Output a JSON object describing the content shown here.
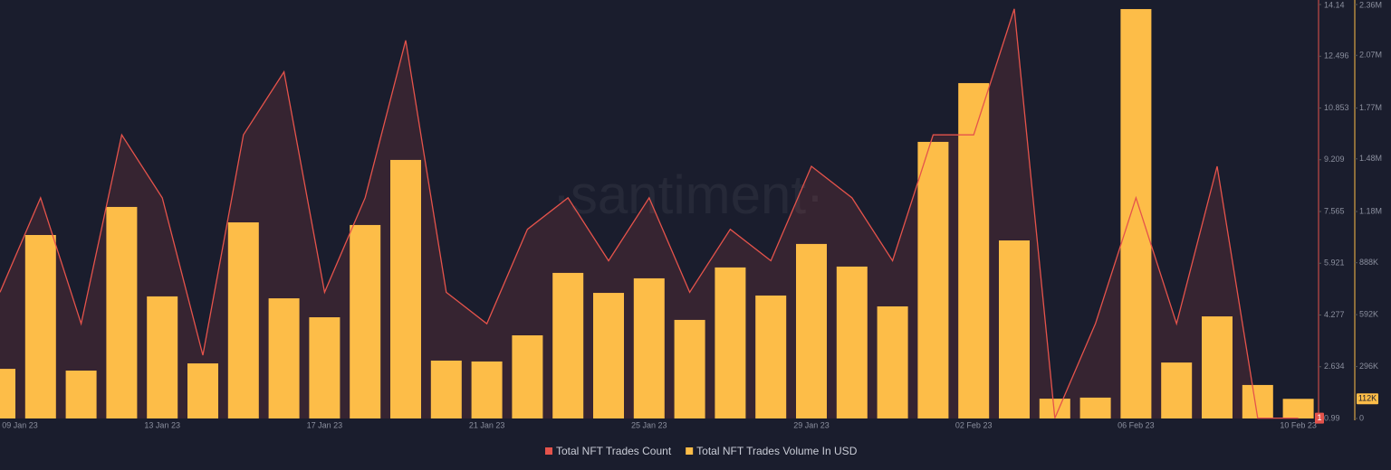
{
  "chart_data": {
    "type": "combo",
    "watermark": "·santiment·",
    "categories": [
      "09 Jan 23",
      null,
      null,
      null,
      "13 Jan 23",
      null,
      null,
      null,
      "17 Jan 23",
      null,
      null,
      null,
      "21 Jan 23",
      null,
      null,
      null,
      "25 Jan 23",
      null,
      null,
      null,
      "29 Jan 23",
      null,
      null,
      null,
      "02 Feb 23",
      null,
      null,
      null,
      "06 Feb 23",
      null,
      null,
      null,
      "10 Feb 23"
    ],
    "series": [
      {
        "name": "Total NFT Trades Count",
        "type": "line",
        "axis": "y",
        "color": "#e5534b",
        "values": [
          5,
          8,
          4,
          10,
          8,
          3,
          10,
          12,
          5,
          8,
          13,
          5,
          4,
          7,
          8,
          6,
          8,
          5,
          7,
          6,
          9,
          8,
          6,
          10,
          10,
          14,
          1,
          4,
          8,
          4,
          9,
          1,
          1
        ]
      },
      {
        "name": "Total NFT Trades Volume In USD",
        "type": "bar",
        "axis": "y2",
        "color": "#fdbd48",
        "values": [
          283000,
          1046000,
          273000,
          1206000,
          696000,
          314000,
          1118000,
          685000,
          577000,
          1103000,
          1474000,
          330000,
          325000,
          474000,
          830000,
          716000,
          799000,
          562000,
          861000,
          701000,
          995000,
          866000,
          639000,
          1577000,
          1912000,
          1015000,
          113000,
          119000,
          2334000,
          319000,
          582000,
          191000,
          112000
        ],
        "value_labels": [
          null,
          null,
          null,
          null,
          null,
          null,
          null,
          null,
          null,
          null,
          null,
          null,
          null,
          null,
          null,
          null,
          null,
          null,
          null,
          null,
          null,
          null,
          null,
          null,
          null,
          null,
          null,
          null,
          null,
          null,
          null,
          null,
          "112K"
        ]
      }
    ],
    "ylim": [
      0.99,
      14.14
    ],
    "yticks": [
      0.99,
      2.634,
      4.277,
      5.921,
      7.565,
      9.209,
      10.853,
      12.496,
      14.14
    ],
    "y2lim": [
      0,
      2360000
    ],
    "y2ticks": [
      0,
      {
        "value": 296000,
        "label": "296K"
      },
      {
        "value": 592000,
        "label": "592K"
      },
      {
        "value": 888000,
        "label": "888K"
      },
      {
        "value": 1180000,
        "label": "1.18M"
      },
      {
        "value": 1480000,
        "label": "1.48M"
      },
      {
        "value": 1770000,
        "label": "1.77M"
      },
      {
        "value": 2070000,
        "label": "2.07M"
      },
      {
        "value": 2360000,
        "label": "2.36M"
      }
    ]
  }
}
